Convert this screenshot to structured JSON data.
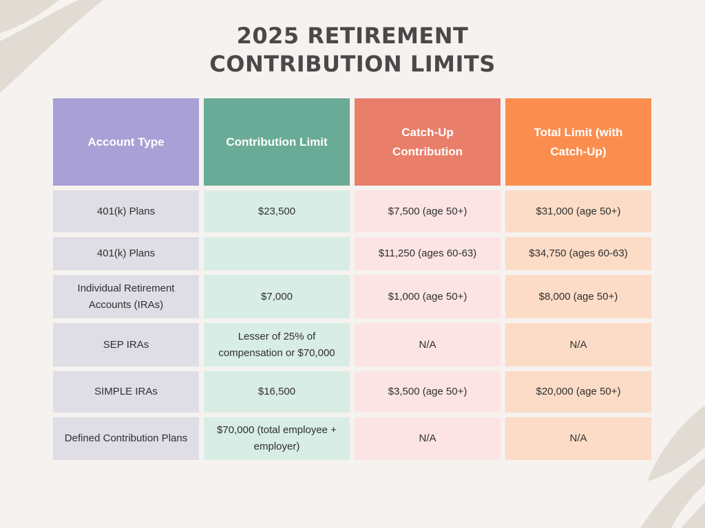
{
  "title": {
    "line1": "2025 RETIREMENT",
    "line2": "CONTRIBUTION LIMITS"
  },
  "table": {
    "headers": [
      "Account Type",
      "Contribution Limit",
      "Catch-Up Contribution",
      "Total Limit (with Catch-Up)"
    ],
    "rows": [
      [
        "401(k) Plans",
        "$23,500",
        "$7,500 (age 50+)",
        "$31,000 (age 50+)"
      ],
      [
        "401(k) Plans",
        "",
        "$11,250 (ages 60-63)",
        "$34,750 (ages 60-63)"
      ],
      [
        "Individual Retirement Accounts (IRAs)",
        "$7,000",
        "$1,000 (age 50+)",
        "$8,000 (age 50+)"
      ],
      [
        "SEP IRAs",
        "Lesser of 25% of compensation or $70,000",
        "N/A",
        "N/A"
      ],
      [
        "SIMPLE IRAs",
        "$16,500",
        "$3,500 (age 50+)",
        "$20,000 (age 50+)"
      ],
      [
        "Defined Contribution Plans",
        "$70,000 (total employee + employer)",
        "N/A",
        "N/A"
      ]
    ]
  },
  "colors": {
    "background": "#f5f2ef",
    "title_text": "#4a4848",
    "header_account_type": "#a9a0d6",
    "header_contribution_limit": "#6aab97",
    "header_catch_up": "#e97e6a",
    "header_total_limit": "#fb8e4e",
    "cell_account_type": "#dfdde5",
    "cell_contribution_limit": "#d8ede5",
    "cell_catch_up": "#fde4e4",
    "cell_total_limit": "#fcdcc6",
    "decoration": "#e2dbd3"
  }
}
